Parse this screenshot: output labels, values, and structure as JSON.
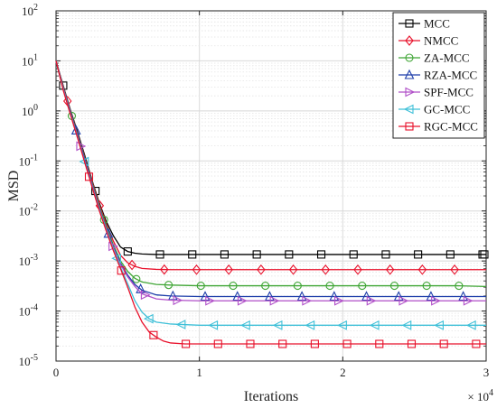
{
  "chart_data": {
    "type": "line",
    "xlabel": "Iterations",
    "ylabel": "MSD",
    "x_multiplier_label": "× 10",
    "x_multiplier_exp": "4",
    "xlim": [
      0,
      30000
    ],
    "ylim": [
      1e-05,
      100
    ],
    "yscale": "log",
    "x_ticks": [
      0,
      10000,
      20000,
      30000
    ],
    "x_tick_labels": [
      "0",
      "1",
      "2",
      "3"
    ],
    "y_ticks": [
      1e-05,
      0.0001,
      0.001,
      0.01,
      0.1,
      1,
      10,
      100
    ],
    "y_tick_base": "10",
    "y_tick_exps": [
      "-5",
      "-4",
      "-3",
      "-2",
      "-1",
      "0",
      "1",
      "2"
    ],
    "grid": true,
    "legend_position": "top-right",
    "series": [
      {
        "name": "MCC",
        "color": "#000000",
        "marker": "square",
        "x": [
          0,
          500,
          1000,
          1500,
          2000,
          2500,
          3000,
          3500,
          4000,
          4500,
          5000,
          5500,
          6000,
          7000,
          8000,
          10000,
          12000,
          14000,
          16000,
          18000,
          20000,
          22000,
          24000,
          26000,
          28000,
          30000
        ],
        "y": [
          10,
          3.2,
          1.05,
          0.38,
          0.13,
          0.042,
          0.015,
          0.0062,
          0.0032,
          0.0019,
          0.00155,
          0.00143,
          0.00138,
          0.00135,
          0.00135,
          0.00135,
          0.00135,
          0.00135,
          0.00135,
          0.00135,
          0.00135,
          0.00135,
          0.00135,
          0.00135,
          0.00135,
          0.00135
        ]
      },
      {
        "name": "NMCC",
        "color": "#e8102a",
        "marker": "diamond",
        "x": [
          0,
          500,
          1000,
          1500,
          2000,
          2500,
          3000,
          3500,
          4000,
          4500,
          5000,
          5500,
          6000,
          7000,
          8000,
          10000,
          12000,
          14000,
          16000,
          18000,
          20000,
          22000,
          24000,
          26000,
          28000,
          30000
        ],
        "y": [
          10,
          3.1,
          1.0,
          0.35,
          0.12,
          0.04,
          0.014,
          0.0055,
          0.0025,
          0.0013,
          0.00092,
          0.00078,
          0.00071,
          0.00068,
          0.00067,
          0.00067,
          0.00067,
          0.00067,
          0.00067,
          0.00067,
          0.00067,
          0.00067,
          0.00067,
          0.00067,
          0.00067,
          0.00067
        ]
      },
      {
        "name": "ZA-MCC",
        "color": "#3fa535",
        "marker": "circle",
        "x": [
          0,
          500,
          1000,
          1500,
          2000,
          2500,
          3000,
          3500,
          4000,
          4500,
          5000,
          5500,
          6000,
          7000,
          8000,
          10000,
          12000,
          14000,
          16000,
          18000,
          20000,
          22000,
          24000,
          26000,
          28000,
          30000
        ],
        "y": [
          10,
          3.0,
          0.98,
          0.34,
          0.115,
          0.038,
          0.013,
          0.005,
          0.0021,
          0.001,
          0.00062,
          0.00045,
          0.00038,
          0.00034,
          0.00033,
          0.00032,
          0.00032,
          0.00032,
          0.00032,
          0.00032,
          0.00032,
          0.00032,
          0.00032,
          0.00032,
          0.00032,
          0.00031
        ]
      },
      {
        "name": "RZA-MCC",
        "color": "#1f3faa",
        "marker": "triangle-up",
        "x": [
          0,
          500,
          1000,
          1500,
          2000,
          2500,
          3000,
          3500,
          4000,
          4500,
          5000,
          5500,
          6000,
          7000,
          8000,
          10000,
          12000,
          14000,
          16000,
          18000,
          20000,
          22000,
          24000,
          26000,
          28000,
          30000
        ],
        "y": [
          10,
          2.9,
          0.95,
          0.33,
          0.11,
          0.036,
          0.012,
          0.0046,
          0.0019,
          0.0009,
          0.00052,
          0.00034,
          0.00026,
          0.00021,
          0.0002,
          0.000195,
          0.000195,
          0.000195,
          0.000195,
          0.000195,
          0.000195,
          0.000195,
          0.000195,
          0.000195,
          0.000195,
          0.000195
        ]
      },
      {
        "name": "SPF-MCC",
        "color": "#b04fc8",
        "marker": "triangle-right",
        "x": [
          0,
          500,
          1000,
          1500,
          2000,
          2500,
          3000,
          3500,
          4000,
          4500,
          5000,
          5500,
          6000,
          7000,
          8000,
          10000,
          12000,
          14000,
          16000,
          18000,
          20000,
          22000,
          24000,
          26000,
          28000,
          30000
        ],
        "y": [
          10,
          2.8,
          0.9,
          0.31,
          0.1,
          0.034,
          0.0115,
          0.0044,
          0.0018,
          0.00085,
          0.00048,
          0.00031,
          0.00022,
          0.000175,
          0.000165,
          0.00016,
          0.00016,
          0.00016,
          0.00016,
          0.00016,
          0.00016,
          0.00016,
          0.00016,
          0.00016,
          0.00016,
          0.00016
        ]
      },
      {
        "name": "GC-MCC",
        "color": "#3fc0d8",
        "marker": "triangle-left",
        "x": [
          0,
          500,
          1000,
          1500,
          2000,
          2500,
          3000,
          3500,
          4000,
          4500,
          5000,
          5500,
          6000,
          6500,
          7000,
          8000,
          10000,
          12000,
          14000,
          16000,
          18000,
          20000,
          22000,
          24000,
          26000,
          28000,
          30000
        ],
        "y": [
          10,
          2.7,
          0.87,
          0.3,
          0.097,
          0.032,
          0.011,
          0.0042,
          0.0017,
          0.00075,
          0.00035,
          0.00016,
          9.5e-05,
          7e-05,
          6e-05,
          5.5e-05,
          5.2e-05,
          5.2e-05,
          5.2e-05,
          5.2e-05,
          5.2e-05,
          5.2e-05,
          5.2e-05,
          5.2e-05,
          5.2e-05,
          5.2e-05,
          5.2e-05
        ]
      },
      {
        "name": "RGC-MCC",
        "color": "#e8102a",
        "marker": "square",
        "x": [
          0,
          500,
          1000,
          1500,
          2000,
          2500,
          3000,
          3500,
          4000,
          4500,
          5000,
          5500,
          6000,
          6500,
          7000,
          7500,
          8000,
          9000,
          10000,
          12000,
          14000,
          16000,
          18000,
          20000,
          22000,
          24000,
          26000,
          28000,
          30000
        ],
        "y": [
          10,
          2.6,
          0.85,
          0.29,
          0.094,
          0.031,
          0.0105,
          0.004,
          0.0016,
          0.0007,
          0.0003,
          0.00012,
          6e-05,
          3.8e-05,
          3e-05,
          2.5e-05,
          2.3e-05,
          2.2e-05,
          2.2e-05,
          2.2e-05,
          2.2e-05,
          2.2e-05,
          2.2e-05,
          2.2e-05,
          2.2e-05,
          2.2e-05,
          2.2e-05,
          2.2e-05,
          2.2e-05
        ]
      }
    ]
  }
}
